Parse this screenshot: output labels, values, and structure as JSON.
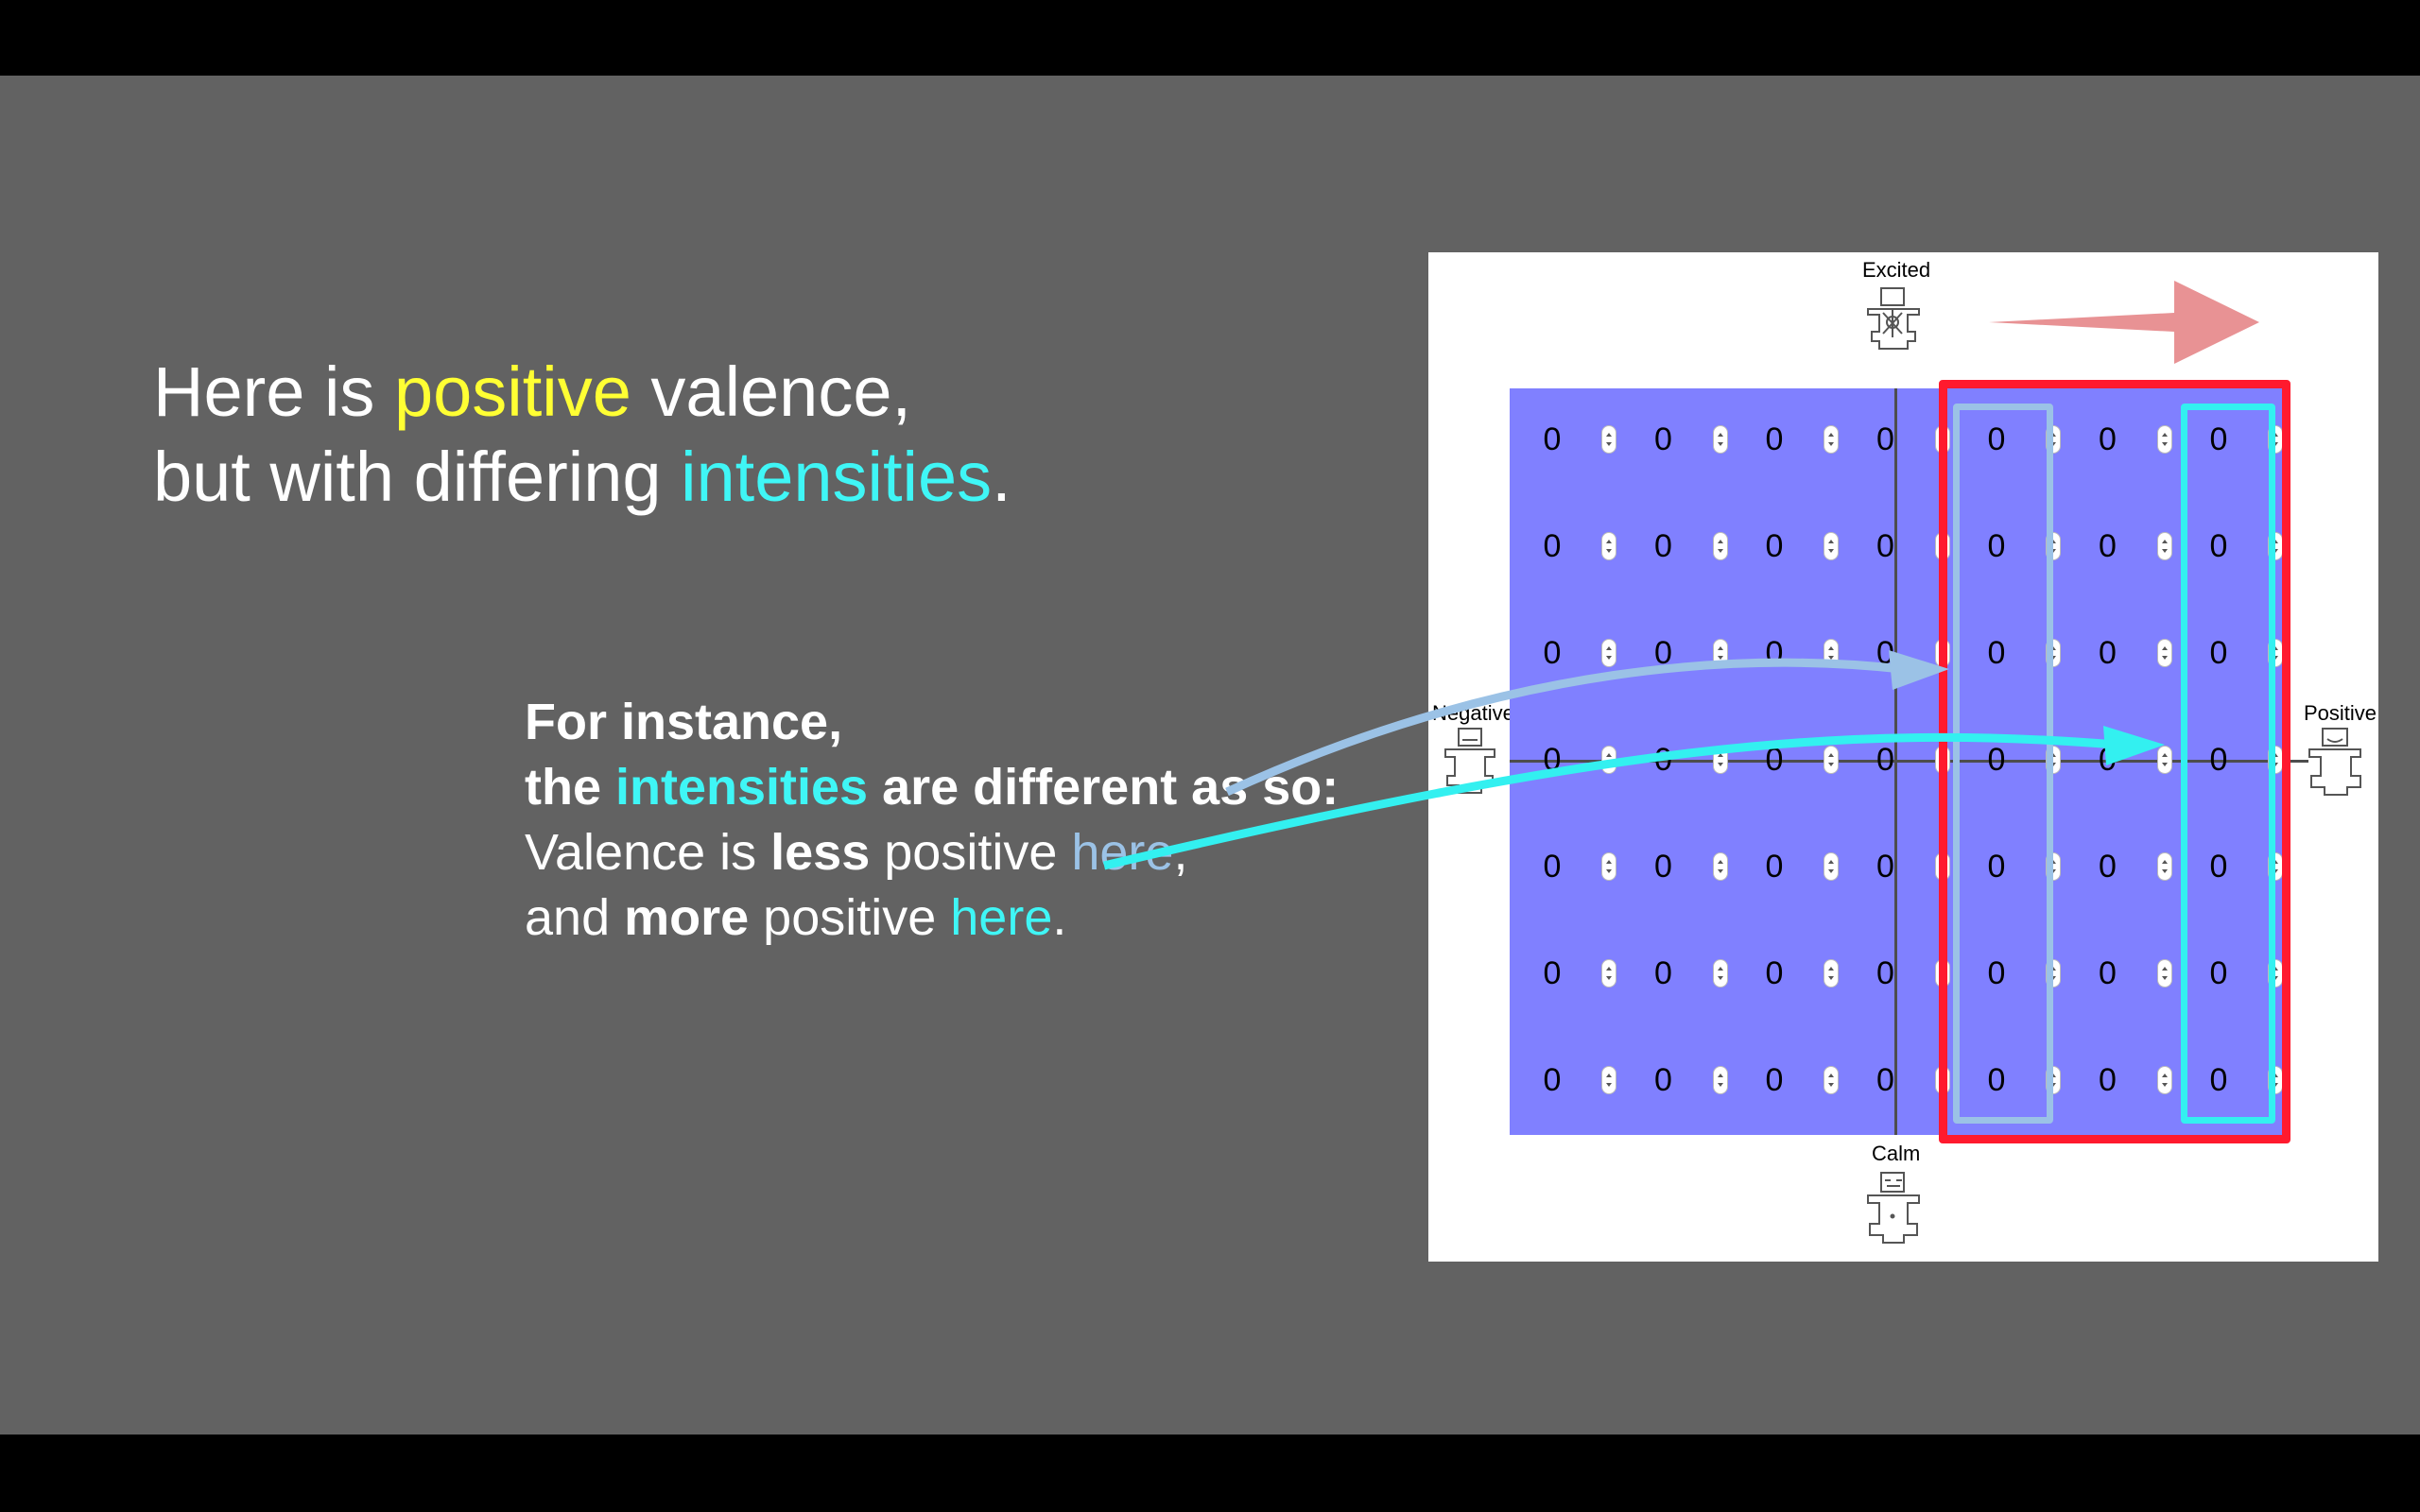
{
  "title": {
    "line1_pre": "Here is ",
    "line1_highlight": "positive",
    "line1_post": " valence,",
    "line2_pre": "but with differing ",
    "line2_highlight": "intensities",
    "line2_post": "."
  },
  "note": {
    "line1": "For instance,",
    "line2_pre": "the ",
    "line2_highlight": "intensities",
    "line2_post": " are different as so:",
    "line3_pre": "Valence is ",
    "line3_bold": "less",
    "line3_mid": " positive ",
    "line3_link": "here",
    "line3_post": ",",
    "line4_pre": "and ",
    "line4_bold": "more",
    "line4_mid": " positive ",
    "line4_link": "here",
    "line4_post": "."
  },
  "figure": {
    "top_label": "Excited",
    "bottom_label": "Calm",
    "left_label": "Negative",
    "right_label": "Positive",
    "cell_value": "0",
    "rows": 7,
    "cols": 7
  },
  "colors": {
    "yellow": "#ffff33",
    "cyan": "#3ff6f6",
    "light_blue": "#9bc2e6",
    "red": "#ff1a2e",
    "salmon_arrow": "#e89294",
    "grid_fill": "#8080ff"
  }
}
